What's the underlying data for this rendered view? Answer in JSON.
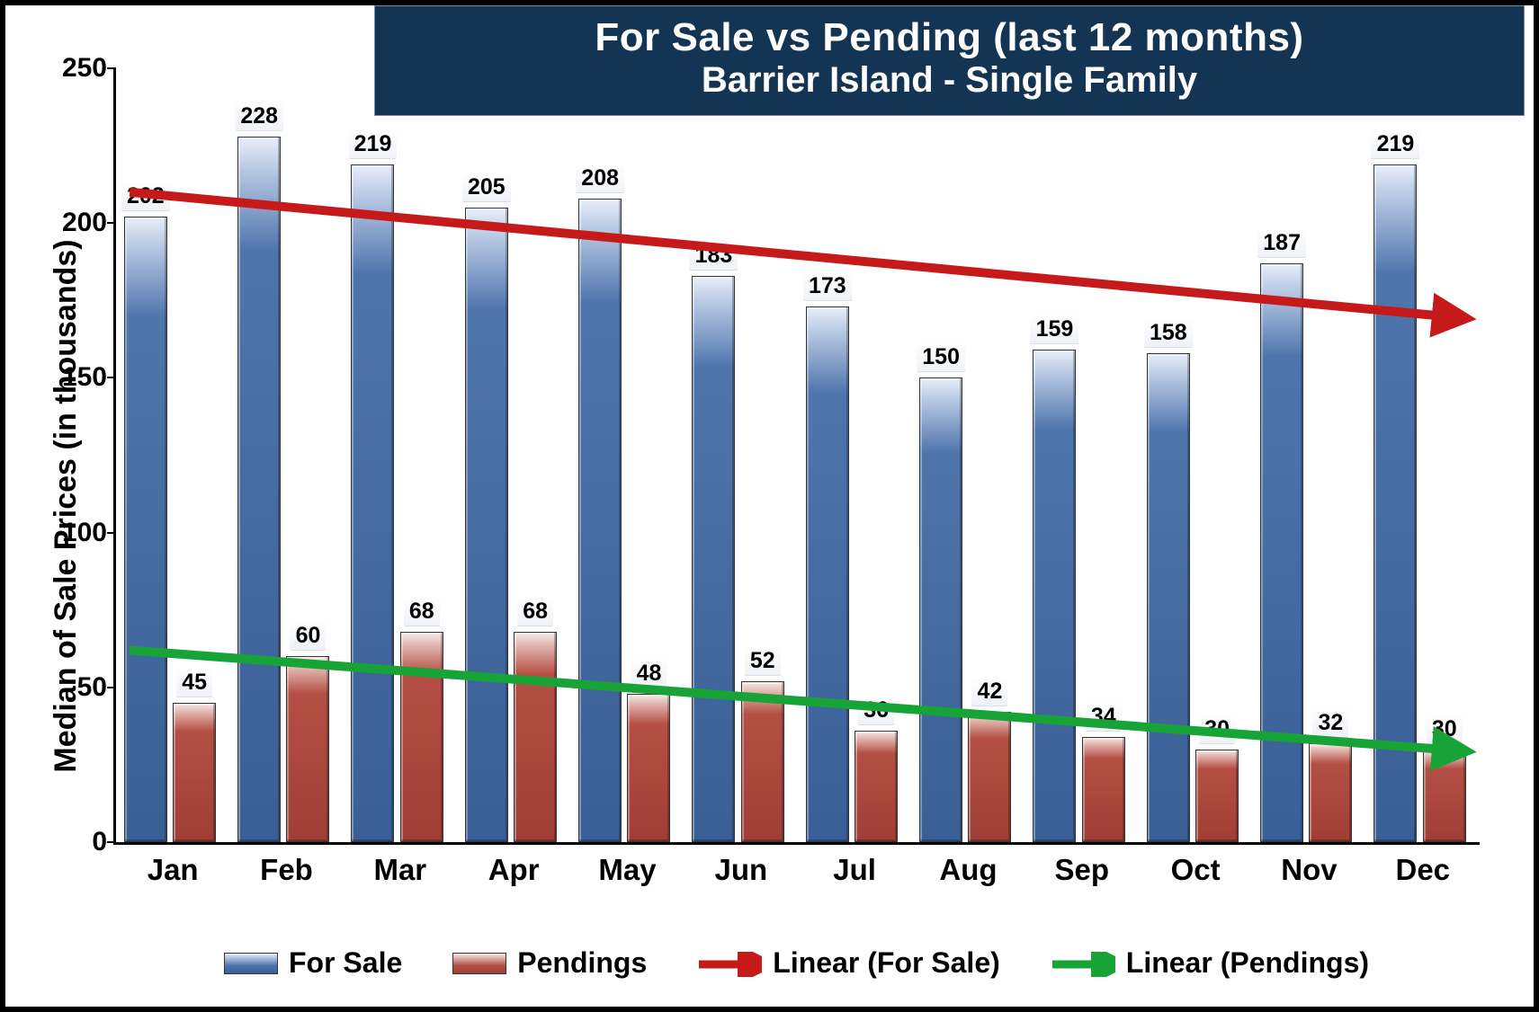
{
  "chart": {
    "type": "bar-with-trend",
    "title_line1": "For Sale vs Pending (last 12 months)",
    "title_line2": "Barrier Island - Single Family",
    "title_bg": "#133453",
    "title_color": "#ffffff",
    "title_fontsize": 44,
    "ylabel": "Median of Sale Prices (in thousands)",
    "label_fontsize": 34,
    "axis_tick_fontsize": 30,
    "data_label_fontsize": 25,
    "x_label_fontsize": 33,
    "ylim": [
      0,
      250
    ],
    "ytick_step": 50,
    "categories": [
      "Jan",
      "Feb",
      "Mar",
      "Apr",
      "May",
      "Jun",
      "Jul",
      "Aug",
      "Sep",
      "Oct",
      "Nov",
      "Dec"
    ],
    "series": {
      "for_sale": {
        "label": "For Sale",
        "color": "#4f75ad",
        "highlight": "#e8eef8",
        "values": [
          202,
          228,
          219,
          205,
          208,
          183,
          173,
          150,
          159,
          158,
          187,
          219
        ]
      },
      "pendings": {
        "label": "Pendings",
        "color": "#b44f44",
        "highlight": "#f5e9e7",
        "values": [
          45,
          60,
          68,
          68,
          48,
          52,
          36,
          42,
          34,
          30,
          32,
          30
        ]
      }
    },
    "trendlines": {
      "for_sale": {
        "label": "Linear (For Sale)",
        "color": "#c61a1a",
        "width": 10,
        "start_value": 210,
        "end_value": 170
      },
      "pendings": {
        "label": "Linear (Pendings)",
        "color": "#17a336",
        "width": 10,
        "start_value": 62,
        "end_value": 30
      }
    },
    "background_color": "#ffffff",
    "border_color": "#000000",
    "legend_fontsize": 32
  }
}
